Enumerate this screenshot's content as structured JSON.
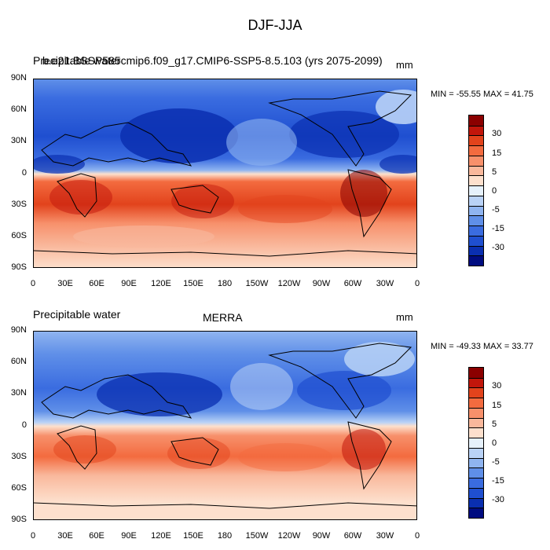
{
  "figure": {
    "main_title": "DJF-JJA"
  },
  "panels": [
    {
      "variable": "Precipitable water",
      "overlap_text": "b.e21.BSSP585cmip6.f09_g17.CMIP6-SSP5-8.5.103 (yrs 2075-2099)",
      "units": "mm",
      "minmax": "MIN = -55.55 MAX =  41.75"
    },
    {
      "variable": "Precipitable water",
      "center_title": "MERRA",
      "units": "mm",
      "minmax": "MIN = -49.33 MAX =  33.77"
    }
  ],
  "axes": {
    "lat_ticks": [
      "90N",
      "60N",
      "30N",
      "0",
      "30S",
      "60S",
      "90S"
    ],
    "lon_ticks": [
      "0",
      "30E",
      "60E",
      "90E",
      "120E",
      "150E",
      "180",
      "150W",
      "120W",
      "90W",
      "60W",
      "30W",
      "0"
    ]
  },
  "colorbar": {
    "labels": [
      "30",
      "15",
      "5",
      "0",
      "-5",
      "-15",
      "-30"
    ],
    "colors": [
      "#8b0000",
      "#c1160b",
      "#e2431c",
      "#f36b3f",
      "#f7906b",
      "#f9b89c",
      "#fde0cd",
      "#e6f1fb",
      "#b9d2f6",
      "#8fb4f0",
      "#5f8fe8",
      "#3a6ce0",
      "#1f4fd0",
      "#0a2fb0",
      "#000c80"
    ]
  }
}
